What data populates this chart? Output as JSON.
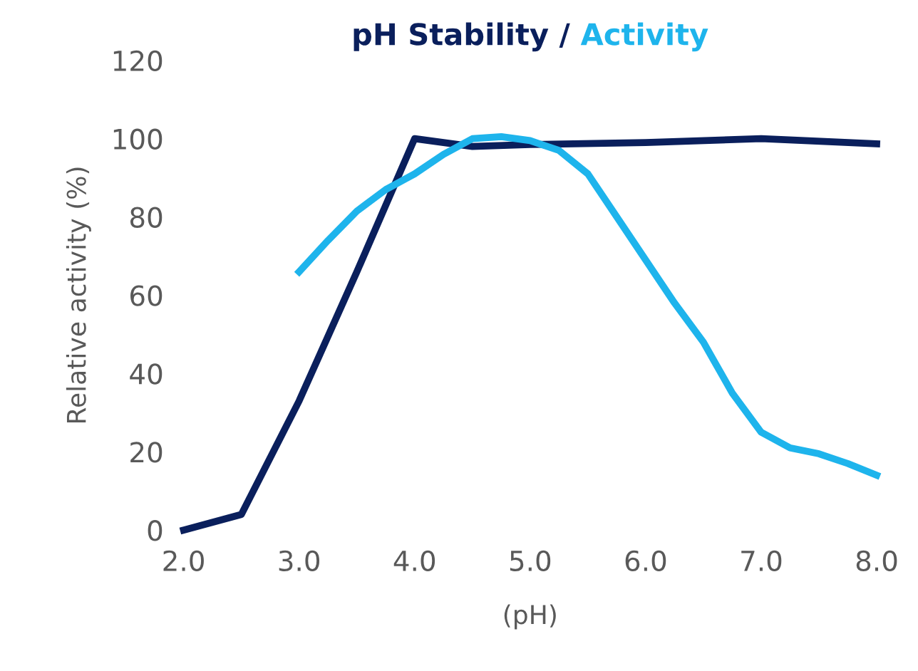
{
  "chart_data": {
    "type": "line",
    "title": "pH Stability / Activity",
    "xlabel": "(pH)",
    "ylabel": "Relative activity (%)",
    "xlim": [
      2,
      8
    ],
    "xticks": [
      {
        "value": 2,
        "label": "2.0"
      },
      {
        "value": 3,
        "label": "3.0"
      },
      {
        "value": 4,
        "label": "4.0"
      },
      {
        "value": 5,
        "label": "5.0"
      },
      {
        "value": 6,
        "label": "6.0"
      },
      {
        "value": 7,
        "label": "7.0"
      },
      {
        "value": 8,
        "label": "8.0"
      }
    ],
    "ylim": [
      0,
      120
    ],
    "yticks": [
      0,
      20,
      40,
      60,
      80,
      100,
      120
    ],
    "grid": false,
    "legend": false,
    "marker": "none",
    "line_style": "solid",
    "series": [
      {
        "color": "#0a1f5c",
        "x": [
          2.0,
          2.5,
          3.0,
          3.5,
          4.0,
          4.5,
          5.0,
          6.0,
          7.0,
          8.0
        ],
        "values": [
          0,
          4,
          33,
          66,
          100,
          98,
          98.5,
          99,
          100,
          98.7
        ]
      },
      {
        "color": "#1eb4ec",
        "x": [
          3.0,
          3.25,
          3.5,
          3.75,
          4.0,
          4.25,
          4.5,
          4.75,
          5.0,
          5.25,
          5.5,
          5.75,
          6.0,
          6.25,
          6.5,
          6.75,
          7.0,
          7.25,
          7.5,
          7.75,
          8.0
        ],
        "values": [
          66,
          74,
          81.5,
          87,
          91,
          96,
          100,
          100.5,
          99.5,
          97,
          91,
          80,
          69,
          58,
          48,
          35,
          25,
          21,
          19.5,
          17,
          14
        ]
      }
    ]
  }
}
